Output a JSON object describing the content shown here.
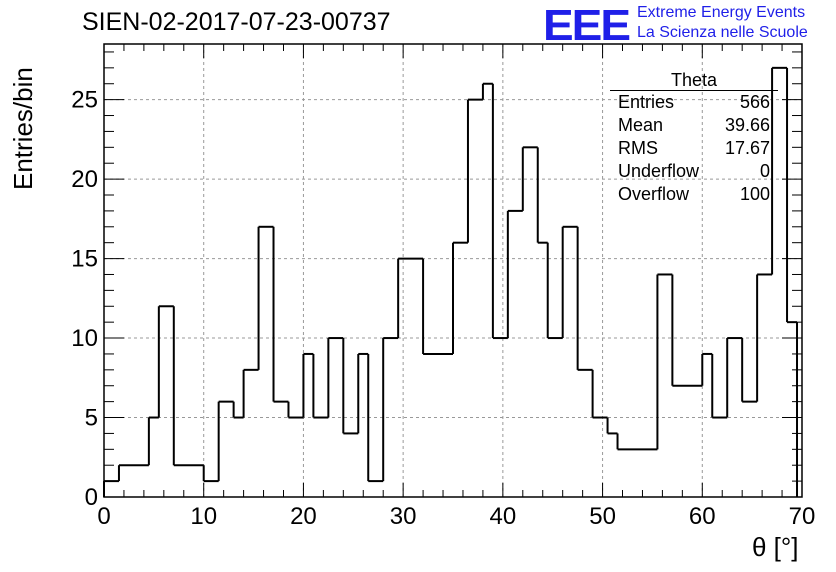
{
  "title": "SIEN-02-2017-07-23-00737",
  "logo": {
    "mark": "EEE",
    "line1": "Extreme Energy Events",
    "line2": "La Scienza nelle Scuole",
    "color": "#1f1fe8"
  },
  "stats_box": {
    "title": "Theta",
    "rows": [
      {
        "label": "Entries",
        "value": "566"
      },
      {
        "label": "Mean",
        "value": "39.66"
      },
      {
        "label": "RMS",
        "value": "17.67"
      },
      {
        "label": "Underflow",
        "value": "0"
      },
      {
        "label": "Overflow",
        "value": "100"
      }
    ]
  },
  "chart_data": {
    "type": "histogram",
    "xlabel": "θ [°]",
    "ylabel": "Entries/bin",
    "xlim": [
      0,
      70
    ],
    "ylim": [
      0,
      28.5
    ],
    "xticks": [
      0,
      10,
      20,
      30,
      40,
      50,
      60,
      70
    ],
    "yticks": [
      0,
      5,
      10,
      15,
      20,
      25
    ],
    "grid": true,
    "line_color": "#000000",
    "bin_edges": [
      0,
      1.5,
      4.5,
      5.5,
      7.0,
      10.0,
      11.5,
      13.0,
      14.0,
      15.5,
      17.0,
      18.5,
      20.0,
      21.0,
      22.5,
      24.0,
      25.5,
      26.5,
      28.0,
      29.5,
      32.0,
      35.0,
      36.5,
      38.0,
      39.0,
      40.5,
      42.0,
      43.5,
      44.5,
      46.0,
      47.5,
      49.0,
      50.5,
      51.5,
      55.5,
      57.0,
      60.0,
      61.0,
      62.5,
      64.0,
      65.5,
      67.0,
      68.5,
      69.5
    ],
    "values": [
      1,
      2,
      5,
      12,
      2,
      1,
      6,
      5,
      8,
      17,
      6,
      5,
      9,
      5,
      10,
      4,
      9,
      1,
      10,
      15,
      9,
      16,
      25,
      26,
      10,
      18,
      22,
      16,
      10,
      17,
      8,
      5,
      4,
      3,
      14,
      7,
      9,
      5,
      10,
      6,
      14,
      27,
      11
    ]
  }
}
